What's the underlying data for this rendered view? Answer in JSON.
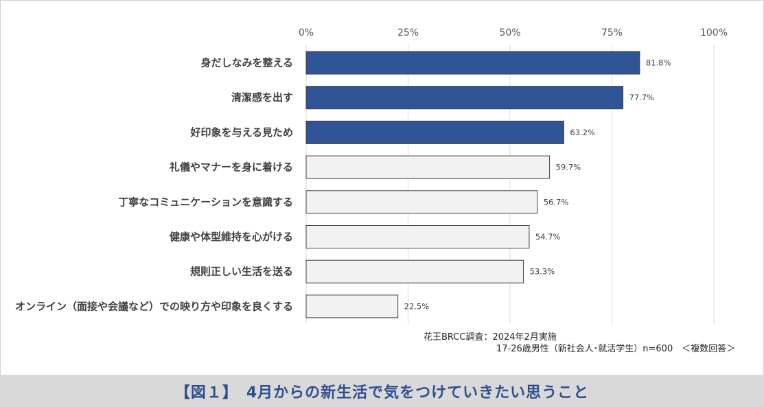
{
  "chart_data": {
    "type": "bar",
    "orientation": "horizontal",
    "categories": [
      "身だしなみを整える",
      "清潔感を出す",
      "好印象を与える見ため",
      "礼儀やマナーを身に着ける",
      "丁寧なコミュニケーションを意識する",
      "健康や体型維持を心がける",
      "規則正しい生活を送る",
      "オンライン（面接や会議など）での映り方や印象を良くする"
    ],
    "values": [
      81.8,
      77.7,
      63.2,
      59.7,
      56.7,
      54.7,
      53.3,
      22.5
    ],
    "value_labels": [
      "81.8%",
      "77.7%",
      "63.2%",
      "59.7%",
      "56.7%",
      "54.7%",
      "53.3%",
      "22.5%"
    ],
    "highlighted_count": 3,
    "x_ticks": [
      "0%",
      "25%",
      "50%",
      "75%",
      "100%"
    ],
    "xlim": [
      0,
      100
    ],
    "grid": true,
    "colors": {
      "highlight": "#2f5597",
      "normal": "#f2f2f2",
      "bar_border": "#404040",
      "grid": "#d9d9d9"
    }
  },
  "source": {
    "line1": "花王BRCC調査：2024年2月実施",
    "line2": "17-26歳男性（新社会人･就活学生）n=600　＜複数回答＞"
  },
  "caption": "【図１】　4月からの新生活で気をつけていきたい思うこと"
}
